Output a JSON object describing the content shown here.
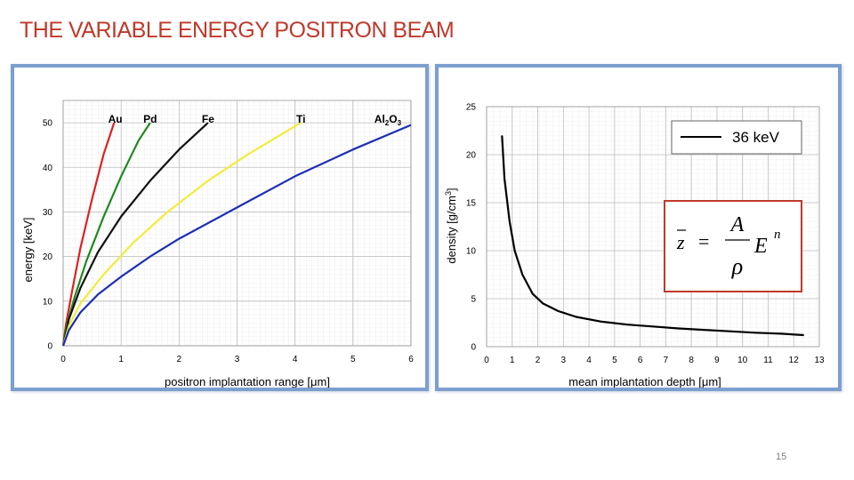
{
  "slide": {
    "title": "THE VARIABLE ENERGY POSITRON BEAM",
    "page_number": "15"
  },
  "chart_data": [
    {
      "type": "line",
      "xlabel": "positron implantation range [μm]",
      "ylabel": "energy [keV]",
      "xlim": [
        0,
        6
      ],
      "ylim": [
        0,
        55
      ],
      "x_ticks": [
        "0",
        "1",
        "2",
        "3",
        "4",
        "5",
        "6"
      ],
      "y_ticks": [
        "0",
        "10",
        "20",
        "30",
        "40",
        "50"
      ],
      "grid": true,
      "series": [
        {
          "name": "Au",
          "color": "#e02020",
          "x": [
            0,
            0.05,
            0.15,
            0.3,
            0.5,
            0.7,
            0.88
          ],
          "y": [
            0,
            5,
            12,
            22,
            33,
            43,
            50
          ]
        },
        {
          "name": "Pd",
          "color": "#1e8a1e",
          "x": [
            0,
            0.05,
            0.2,
            0.4,
            0.7,
            1.0,
            1.3,
            1.5
          ],
          "y": [
            0,
            4,
            11,
            19,
            29,
            38,
            46,
            50
          ]
        },
        {
          "name": "Fe",
          "color": "#111111",
          "x": [
            0,
            0.1,
            0.3,
            0.6,
            1.0,
            1.5,
            2.0,
            2.5
          ],
          "y": [
            0,
            6,
            13,
            21,
            29,
            37,
            44,
            50
          ]
        },
        {
          "name": "Ti",
          "color": "#f3ec3a",
          "x": [
            0,
            0.1,
            0.3,
            0.7,
            1.2,
            1.8,
            2.5,
            3.2,
            4.1
          ],
          "y": [
            0,
            4.5,
            9.5,
            16,
            23,
            30,
            37,
            43,
            50
          ]
        },
        {
          "name": "Al2O3",
          "color": "#1c2fb5",
          "x": [
            0,
            0.1,
            0.3,
            0.6,
            1.0,
            1.5,
            2.0,
            3.0,
            4.0,
            5.0,
            6.0
          ],
          "y": [
            0,
            3.5,
            7.5,
            11.5,
            15.5,
            20,
            24,
            31,
            38,
            44,
            49.5
          ]
        }
      ],
      "labels": [
        {
          "text": "Au",
          "x": 0.9
        },
        {
          "text": "Pd",
          "x": 1.5
        },
        {
          "text": "Fe",
          "x": 2.5
        },
        {
          "text": "Ti",
          "x": 4.1
        },
        {
          "text": "Al",
          "sub1": "2",
          "mid": "O",
          "sub2": "3",
          "x": 5.6
        }
      ]
    },
    {
      "type": "line",
      "xlabel": "mean implantation depth [μm]",
      "ylabel": "density [g/cm",
      "ylabel_sup": "3",
      "ylabel_end": "]",
      "xlim": [
        0,
        13
      ],
      "ylim": [
        0,
        25
      ],
      "x_ticks": [
        "0",
        "1",
        "2",
        "3",
        "4",
        "5",
        "6",
        "7",
        "8",
        "9",
        "10",
        "11",
        "12",
        "13"
      ],
      "y_ticks": [
        "0",
        "5",
        "10",
        "15",
        "20",
        "25"
      ],
      "grid": true,
      "legend_position": "top-right",
      "series": [
        {
          "name": "36 keV",
          "color": "#000000",
          "x": [
            0.6,
            0.7,
            0.9,
            1.1,
            1.4,
            1.8,
            2.2,
            2.8,
            3.5,
            4.5,
            5.5,
            6.5,
            7.5,
            8.5,
            9.5,
            10.5,
            11.5,
            12.4
          ],
          "y": [
            22,
            17.5,
            13,
            10,
            7.5,
            5.5,
            4.5,
            3.7,
            3.1,
            2.6,
            2.3,
            2.1,
            1.9,
            1.75,
            1.6,
            1.45,
            1.35,
            1.2
          ]
        }
      ],
      "formula": {
        "lhs": "z",
        "numerator": "A",
        "denominator": "ρ",
        "base": "E",
        "exponent": "n"
      }
    }
  ]
}
